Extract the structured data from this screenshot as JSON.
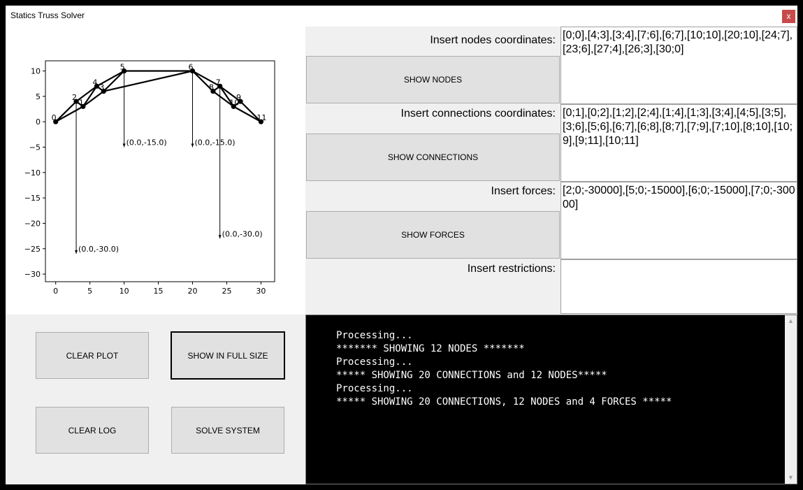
{
  "window": {
    "title": "Statics Truss Solver",
    "close_label": "x"
  },
  "buttons": {
    "show_nodes": "SHOW NODES",
    "show_connections": "SHOW CONNECTIONS",
    "show_forces": "SHOW FORCES",
    "clear_plot": "CLEAR PLOT",
    "show_full_size": "SHOW IN FULL SIZE",
    "clear_log": "CLEAR LOG",
    "solve_system": "SOLVE SYSTEM"
  },
  "inputs": {
    "nodes": {
      "label": "Insert nodes coordinates:",
      "value": "[0;0],[4;3],[3;4],[7;6],[6;7],[10;10],[20;10],[24;7],[23;6],[27;4],[26;3],[30;0]"
    },
    "connections": {
      "label": "Insert connections coordinates:",
      "value": "[0;1],[0;2],[1;2],[2;4],[1;4],[1;3],[3;4],[4;5],[3;5],[3;6],[5;6],[6;7],[6;8],[8;7],[7;9],[7;10],[8;10],[10;9],[9;11],[10;11]"
    },
    "forces": {
      "label": "Insert forces:",
      "value": "[2;0;-30000],[5;0;-15000],[6;0;-15000],[7;0;-30000]"
    },
    "restrictions": {
      "label": "Insert restrictions:",
      "value": ""
    }
  },
  "log": [
    "Processing...",
    "******* SHOWING 12 NODES *******",
    "Processing...",
    "***** SHOWING 20 CONNECTIONS and 12 NODES*****",
    "Processing...",
    "***** SHOWING 20 CONNECTIONS, 12 NODES and 4 FORCES *****"
  ],
  "chart_data": {
    "type": "scatter",
    "title": "",
    "xlabel": "",
    "ylabel": "",
    "xlim": [
      -1.5,
      32
    ],
    "ylim": [
      -31.5,
      12
    ],
    "xticks": [
      0,
      5,
      10,
      15,
      20,
      25,
      30
    ],
    "yticks": [
      10,
      5,
      0,
      -5,
      -10,
      -15,
      -20,
      -25,
      -30
    ],
    "nodes": [
      {
        "id": "0",
        "x": 0,
        "y": 0
      },
      {
        "id": "1",
        "x": 4,
        "y": 3
      },
      {
        "id": "2",
        "x": 3,
        "y": 4
      },
      {
        "id": "3",
        "x": 7,
        "y": 6
      },
      {
        "id": "4",
        "x": 6,
        "y": 7
      },
      {
        "id": "5",
        "x": 10,
        "y": 10
      },
      {
        "id": "6",
        "x": 20,
        "y": 10
      },
      {
        "id": "7",
        "x": 24,
        "y": 7
      },
      {
        "id": "8",
        "x": 23,
        "y": 6
      },
      {
        "id": "9",
        "x": 27,
        "y": 4
      },
      {
        "id": "10",
        "x": 26,
        "y": 3
      },
      {
        "id": "11",
        "x": 30,
        "y": 0
      }
    ],
    "connections": [
      [
        0,
        1
      ],
      [
        0,
        2
      ],
      [
        1,
        2
      ],
      [
        2,
        4
      ],
      [
        1,
        4
      ],
      [
        1,
        3
      ],
      [
        3,
        4
      ],
      [
        4,
        5
      ],
      [
        3,
        5
      ],
      [
        3,
        6
      ],
      [
        5,
        6
      ],
      [
        6,
        7
      ],
      [
        6,
        8
      ],
      [
        8,
        7
      ],
      [
        7,
        9
      ],
      [
        7,
        10
      ],
      [
        8,
        10
      ],
      [
        10,
        9
      ],
      [
        9,
        11
      ],
      [
        10,
        11
      ]
    ],
    "forces": [
      {
        "node": 2,
        "fx": 0.0,
        "fy": -30.0,
        "label": "(0.0,-30.0)"
      },
      {
        "node": 5,
        "fx": 0.0,
        "fy": -15.0,
        "label": "(0.0,-15.0)"
      },
      {
        "node": 6,
        "fx": 0.0,
        "fy": -15.0,
        "label": "(0.0,-15.0)"
      },
      {
        "node": 7,
        "fx": 0.0,
        "fy": -30.0,
        "label": "(0.0,-30.0)"
      }
    ]
  }
}
